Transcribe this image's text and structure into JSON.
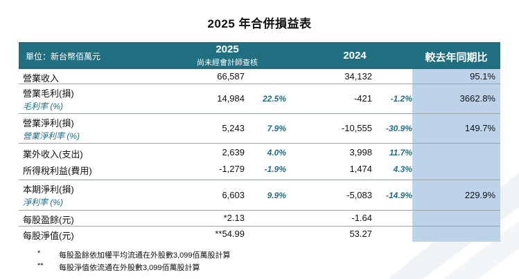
{
  "title": "2025 年合併損益表",
  "header": {
    "unit": "單位：新台幣佰萬元",
    "year_2025": "2025",
    "year_2025_note": "尚未經會計師查核",
    "year_2024": "2024",
    "change": "較去年同期比"
  },
  "rows": [
    {
      "label": "營業收入",
      "v2025": "66,587",
      "v2024": "34,132",
      "change": "95.1%"
    },
    {
      "label": "營業毛利(損)",
      "sub": "毛利率 (%)",
      "v2025": "14,984",
      "p2025": "22.5%",
      "v2024": "-421",
      "p2024": "-1.2%",
      "change": "3662.8%"
    },
    {
      "label": "營業淨利(損)",
      "sub": "營業淨利率 (%)",
      "v2025": "5,243",
      "p2025": "7.9%",
      "v2024": "-10,555",
      "p2024": "-30.9%",
      "change": "149.7%"
    },
    {
      "label": "業外收入(支出)",
      "v2025": "2,639",
      "p2025": "4.0%",
      "v2024": "3,998",
      "p2024": "11.7%"
    },
    {
      "label": "所得稅利益(費用)",
      "v2025": "-1,279",
      "p2025": "-1.9%",
      "v2024": "1,474",
      "p2024": "4.3%"
    },
    {
      "label": "本期淨利(損)",
      "sub": "淨利率 (%)",
      "v2025": "6,603",
      "p2025": "9.9%",
      "v2024": "-5,083",
      "p2024": "-14.9%",
      "change": "229.9%"
    },
    {
      "label": "每股盈餘(元)",
      "v2025": "*2.13",
      "v2024": "-1.64"
    },
    {
      "label": "每股淨值(元)",
      "v2025": "**54.99",
      "v2024": "53.27"
    }
  ],
  "notes": [
    {
      "mark": "*",
      "text": "每股盈餘依加權平均流通在外股數3,099佰萬股計算"
    },
    {
      "mark": "**",
      "text": "每股淨值依流通在外股數3,099佰萬股計算"
    }
  ],
  "colors": {
    "header": "#1f6f80",
    "highlight": "#bcd3ea",
    "accent": "#1d6f86"
  }
}
